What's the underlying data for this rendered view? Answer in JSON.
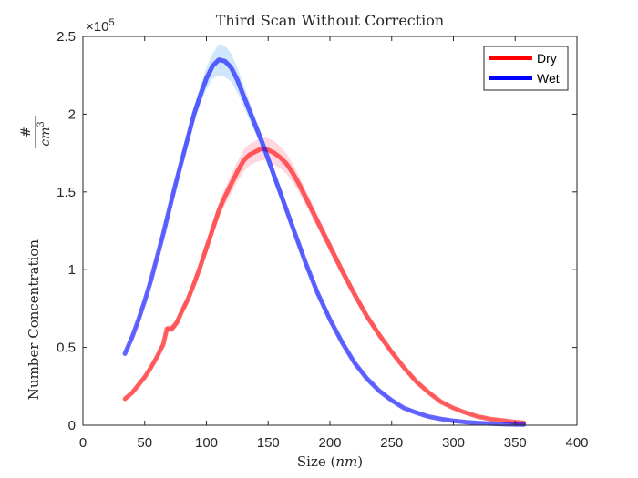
{
  "chart_data": {
    "type": "line",
    "title": "Third Scan Without Correction",
    "xlabel": "Size",
    "xlabel_unit": "nm",
    "ylabel": "Number Concentration",
    "ylabel_fraction": {
      "numerator": "#",
      "denominator": "cm",
      "exponent": "3"
    },
    "y_multiplier": {
      "base": "×10",
      "exponent": "5"
    },
    "xlim": [
      0,
      400
    ],
    "ylim": [
      0,
      2.5
    ],
    "xticks": [
      "0",
      "50",
      "100",
      "150",
      "200",
      "250",
      "300",
      "350",
      "400"
    ],
    "yticks": [
      "0",
      "0.5",
      "1",
      "1.5",
      "2",
      "2.5"
    ],
    "xtick_values": [
      0,
      50,
      100,
      150,
      200,
      250,
      300,
      350,
      400
    ],
    "ytick_values": [
      0,
      0.5,
      1,
      1.5,
      2,
      2.5
    ],
    "grid": false,
    "legend": {
      "position": "top-right"
    },
    "series": [
      {
        "name": "Dry",
        "color": "#ff0000",
        "band_color": "#ffd7de",
        "x": [
          34,
          40,
          45,
          50,
          55,
          60,
          65,
          68,
          72,
          76,
          80,
          85,
          90,
          95,
          100,
          105,
          110,
          115,
          120,
          125,
          130,
          135,
          140,
          145,
          150,
          155,
          160,
          165,
          170,
          175,
          180,
          190,
          200,
          210,
          220,
          230,
          240,
          250,
          260,
          270,
          280,
          290,
          300,
          310,
          320,
          330,
          340,
          350,
          357
        ],
        "y": [
          0.17,
          0.21,
          0.26,
          0.31,
          0.37,
          0.44,
          0.52,
          0.62,
          0.62,
          0.66,
          0.73,
          0.81,
          0.91,
          1.02,
          1.14,
          1.26,
          1.38,
          1.47,
          1.55,
          1.63,
          1.7,
          1.74,
          1.76,
          1.78,
          1.77,
          1.75,
          1.72,
          1.68,
          1.62,
          1.55,
          1.47,
          1.31,
          1.15,
          0.99,
          0.84,
          0.7,
          0.58,
          0.47,
          0.37,
          0.28,
          0.21,
          0.15,
          0.11,
          0.08,
          0.055,
          0.04,
          0.03,
          0.02,
          0.015
        ],
        "band": [
          0.01,
          0.01,
          0.012,
          0.014,
          0.016,
          0.018,
          0.02,
          0.022,
          0.024,
          0.026,
          0.028,
          0.03,
          0.032,
          0.036,
          0.04,
          0.045,
          0.05,
          0.055,
          0.06,
          0.065,
          0.07,
          0.07,
          0.07,
          0.075,
          0.075,
          0.075,
          0.07,
          0.065,
          0.06,
          0.055,
          0.05,
          0.045,
          0.04,
          0.035,
          0.03,
          0.026,
          0.022,
          0.018,
          0.015,
          0.012,
          0.01,
          0.008,
          0.006,
          0.005,
          0.004,
          0.003,
          0.003,
          0.002,
          0.002
        ]
      },
      {
        "name": "Wet",
        "color": "#0000ff",
        "band_color": "#cfe6fb",
        "x": [
          34,
          40,
          45,
          50,
          55,
          60,
          65,
          70,
          75,
          80,
          85,
          90,
          95,
          100,
          105,
          110,
          115,
          120,
          125,
          130,
          135,
          140,
          145,
          150,
          155,
          160,
          165,
          170,
          175,
          180,
          190,
          200,
          210,
          220,
          230,
          240,
          250,
          260,
          270,
          280,
          290,
          300,
          310,
          320,
          330,
          340,
          350,
          357
        ],
        "y": [
          0.46,
          0.57,
          0.68,
          0.8,
          0.93,
          1.08,
          1.23,
          1.39,
          1.55,
          1.7,
          1.85,
          2.0,
          2.12,
          2.23,
          2.31,
          2.35,
          2.34,
          2.3,
          2.22,
          2.12,
          2.02,
          1.92,
          1.82,
          1.71,
          1.6,
          1.49,
          1.38,
          1.27,
          1.16,
          1.05,
          0.85,
          0.68,
          0.53,
          0.4,
          0.3,
          0.22,
          0.16,
          0.11,
          0.08,
          0.055,
          0.04,
          0.028,
          0.02,
          0.014,
          0.01,
          0.007,
          0.005,
          0.004
        ],
        "band": [
          0.01,
          0.012,
          0.014,
          0.016,
          0.018,
          0.02,
          0.025,
          0.03,
          0.035,
          0.04,
          0.045,
          0.05,
          0.06,
          0.07,
          0.08,
          0.1,
          0.1,
          0.09,
          0.08,
          0.07,
          0.06,
          0.05,
          0.05,
          0.045,
          0.04,
          0.035,
          0.03,
          0.028,
          0.025,
          0.022,
          0.018,
          0.015,
          0.012,
          0.01,
          0.008,
          0.006,
          0.005,
          0.004,
          0.003,
          0.003,
          0.002,
          0.002,
          0.002,
          0.001,
          0.001,
          0.001,
          0.001,
          0.001
        ]
      }
    ]
  }
}
